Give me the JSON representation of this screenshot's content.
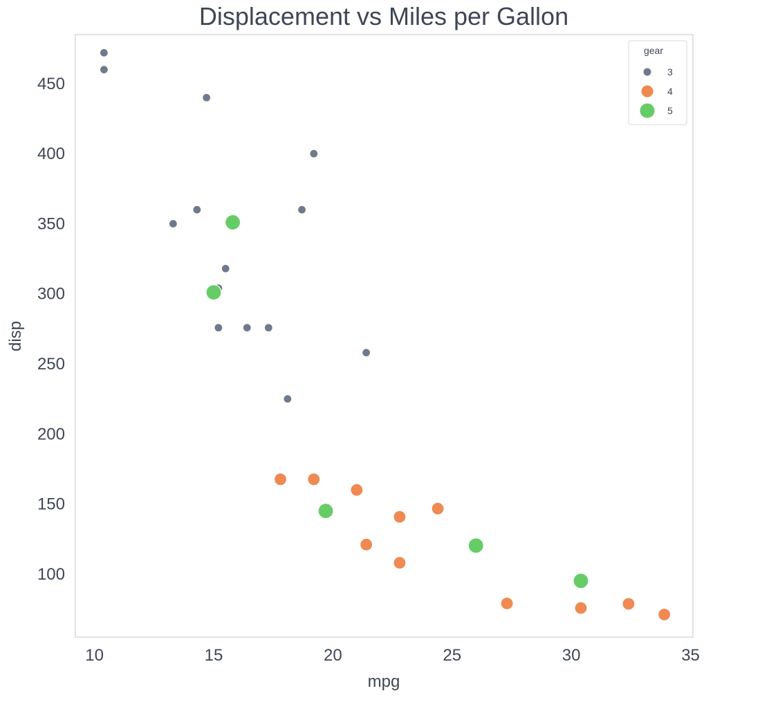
{
  "chart_data": {
    "type": "scatter",
    "title": "Displacement vs Miles per Gallon",
    "xlabel": "mpg",
    "ylabel": "disp",
    "xlim": [
      9.2,
      35.1
    ],
    "ylim": [
      55,
      485
    ],
    "xticks": [
      10,
      15,
      20,
      25,
      30,
      35
    ],
    "yticks": [
      100,
      150,
      200,
      250,
      300,
      350,
      400,
      450
    ],
    "grid": false,
    "legend": {
      "title": "gear",
      "position": "top-right"
    },
    "series": [
      {
        "name": "3",
        "color": "#707a8d",
        "marker_size": "small",
        "points": [
          [
            10.4,
            472
          ],
          [
            10.4,
            460
          ],
          [
            14.7,
            440
          ],
          [
            19.2,
            400
          ],
          [
            13.3,
            350
          ],
          [
            14.3,
            360
          ],
          [
            18.7,
            360
          ],
          [
            15.5,
            318
          ],
          [
            15.2,
            304
          ],
          [
            15.2,
            275.8
          ],
          [
            16.4,
            275.8
          ],
          [
            17.3,
            275.8
          ],
          [
            21.4,
            258
          ],
          [
            18.1,
            225
          ],
          [
            15.5,
            318
          ]
        ]
      },
      {
        "name": "4",
        "color": "#ee8a52",
        "marker_size": "medium",
        "points": [
          [
            17.8,
            167.6
          ],
          [
            19.2,
            167.6
          ],
          [
            21.0,
            160
          ],
          [
            21.0,
            160
          ],
          [
            22.8,
            140.8
          ],
          [
            24.4,
            146.7
          ],
          [
            21.4,
            121
          ],
          [
            22.8,
            108
          ],
          [
            27.3,
            79
          ],
          [
            30.4,
            75.7
          ],
          [
            32.4,
            78.7
          ],
          [
            33.9,
            71.1
          ]
        ]
      },
      {
        "name": "5",
        "color": "#66cc66",
        "marker_size": "large",
        "points": [
          [
            15.8,
            351
          ],
          [
            15.0,
            301
          ],
          [
            19.7,
            145
          ],
          [
            26.0,
            120.3
          ],
          [
            30.4,
            95.1
          ]
        ]
      }
    ]
  }
}
